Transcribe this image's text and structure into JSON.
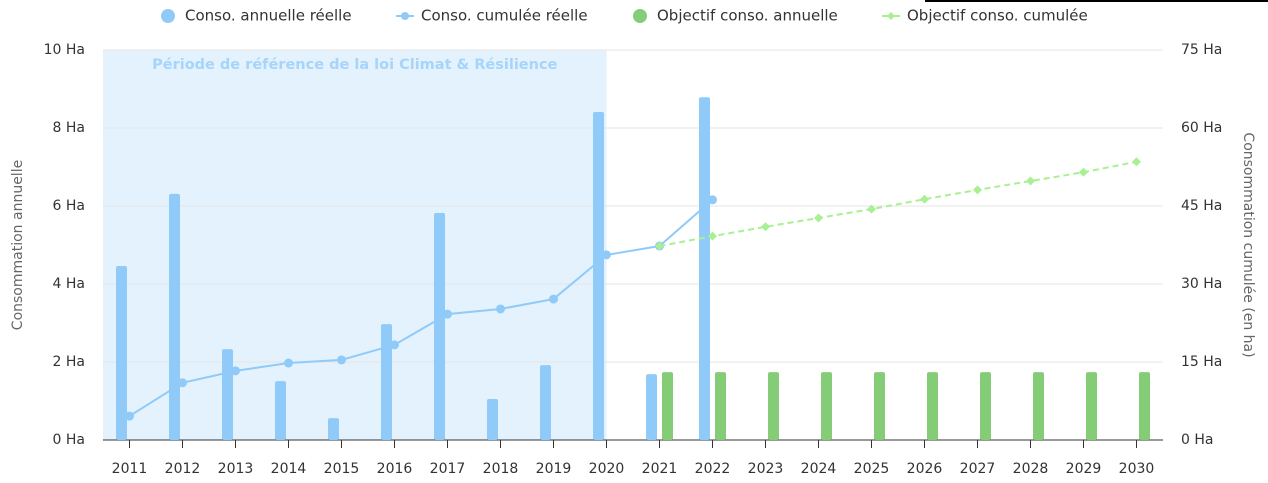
{
  "chart_data": {
    "type": "bar-line",
    "categories": [
      "2011",
      "2012",
      "2013",
      "2014",
      "2015",
      "2016",
      "2017",
      "2018",
      "2019",
      "2020",
      "2021",
      "2022",
      "2023",
      "2024",
      "2025",
      "2026",
      "2027",
      "2028",
      "2029",
      "2030"
    ],
    "series": [
      {
        "name": "Conso. annuelle réelle",
        "kind": "bar",
        "color": "#90caf9",
        "axis": "y",
        "values": [
          4.46,
          6.31,
          2.33,
          1.51,
          0.56,
          2.97,
          5.82,
          1.05,
          1.92,
          8.41,
          1.69,
          8.79,
          null,
          null,
          null,
          null,
          null,
          null,
          null,
          null
        ]
      },
      {
        "name": "Conso. cumulée réelle",
        "kind": "line",
        "color": "#90caf9",
        "axis": "y2",
        "values": [
          4.6,
          11.0,
          13.3,
          14.8,
          15.4,
          18.3,
          24.2,
          25.2,
          27.1,
          35.6,
          37.3,
          46.2,
          null,
          null,
          null,
          null,
          null,
          null,
          null,
          null
        ]
      },
      {
        "name": "Objectif conso. annuelle",
        "kind": "bar",
        "color": "#85cc77",
        "axis": "y",
        "values": [
          null,
          null,
          null,
          null,
          null,
          null,
          null,
          null,
          null,
          null,
          1.74,
          1.74,
          1.74,
          1.74,
          1.74,
          1.74,
          1.74,
          1.74,
          1.74,
          1.74
        ]
      },
      {
        "name": "Objectif conso. cumulée",
        "kind": "line",
        "dashed": true,
        "color": "#a8f092",
        "axis": "y2",
        "values": [
          null,
          null,
          null,
          null,
          null,
          null,
          null,
          null,
          null,
          null,
          37.3,
          39.2,
          41.0,
          42.7,
          44.4,
          46.3,
          48.1,
          49.8,
          51.5,
          53.5
        ]
      }
    ],
    "ylabel": "Consommation annuelle",
    "y2label": "Consommation cumulée (en ha)",
    "ylim": [
      0,
      10
    ],
    "yticks": [
      {
        "value": 0,
        "label": "0 Ha"
      },
      {
        "value": 2,
        "label": "2 Ha"
      },
      {
        "value": 4,
        "label": "4 Ha"
      },
      {
        "value": 6,
        "label": "6 Ha"
      },
      {
        "value": 8,
        "label": "8 Ha"
      },
      {
        "value": 10,
        "label": "10 Ha"
      }
    ],
    "y2lim": [
      0,
      75
    ],
    "y2ticks": [
      {
        "value": 0,
        "label": "0 Ha"
      },
      {
        "value": 15,
        "label": "15 Ha"
      },
      {
        "value": 30,
        "label": "30 Ha"
      },
      {
        "value": 45,
        "label": "45 Ha"
      },
      {
        "value": 60,
        "label": "60 Ha"
      },
      {
        "value": 75,
        "label": "75 Ha"
      }
    ],
    "grid": true,
    "legend": "top",
    "plot_band": {
      "label": "Période de référence de la loi Climat & Résilience",
      "from": "2011",
      "to": "2020",
      "color": "#e3f2fd"
    }
  }
}
